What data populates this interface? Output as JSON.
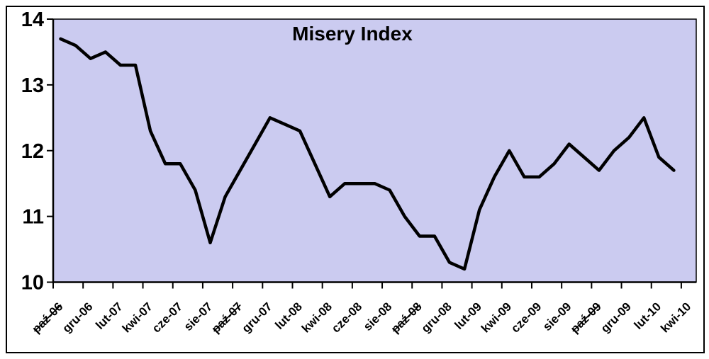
{
  "title": "Misery Index",
  "chart_data": {
    "type": "line",
    "title": "Misery Index",
    "series_name": "Misery Index",
    "legend": "none",
    "grid": false,
    "ylim": [
      10,
      14
    ],
    "y_ticks": [
      14,
      13,
      12,
      11,
      10
    ],
    "x": [
      "paź-06",
      "lis-06",
      "gru-06",
      "sty-07",
      "lut-07",
      "mar-07",
      "kwi-07",
      "maj-07",
      "cze-07",
      "lip-07",
      "sie-07",
      "wrz-07",
      "paź-07",
      "lis-07",
      "gru-07",
      "sty-08",
      "lut-08",
      "mar-08",
      "kwi-08",
      "maj-08",
      "cze-08",
      "lip-08",
      "sie-08",
      "wrz-08",
      "paź-08",
      "lis-08",
      "gru-08",
      "sty-09",
      "lut-09",
      "mar-09",
      "kwi-09",
      "maj-09",
      "cze-09",
      "lip-09",
      "sie-09",
      "wrz-09",
      "paź-09",
      "lis-09",
      "gru-09",
      "sty-10",
      "lut-10",
      "mar-10",
      "kwi-10"
    ],
    "values": [
      13.7,
      13.6,
      13.4,
      13.5,
      13.3,
      13.3,
      12.3,
      11.8,
      11.8,
      11.4,
      10.6,
      11.3,
      11.7,
      12.1,
      12.5,
      12.4,
      12.3,
      11.8,
      11.3,
      11.5,
      11.5,
      11.5,
      11.4,
      11.0,
      10.7,
      10.7,
      10.3,
      10.2,
      11.1,
      11.6,
      12.0,
      11.6,
      11.6,
      11.8,
      12.1,
      11.9,
      11.7,
      12.0,
      12.2,
      12.5,
      11.9,
      11.7,
      null
    ],
    "x_tick_labels": [
      "paź-06",
      "gru-06",
      "lut-07",
      "kwi-07",
      "cze-07",
      "sie-07",
      "paź-07",
      "gru-07",
      "lut-08",
      "kwi-08",
      "cze-08",
      "sie-08",
      "paź-08",
      "gru-08",
      "lut-09",
      "kwi-09",
      "cze-09",
      "sie-09",
      "paź-09",
      "gru-09",
      "lut-10",
      "kwi-10"
    ],
    "strikethrough_x_labels": [
      "paź-06",
      "paź-07",
      "paź-08",
      "paź-09"
    ],
    "line_color": "#000000",
    "plot_background": "#CBCBF0",
    "outer_background": "#FFFFFF",
    "border_color": "#000000"
  }
}
